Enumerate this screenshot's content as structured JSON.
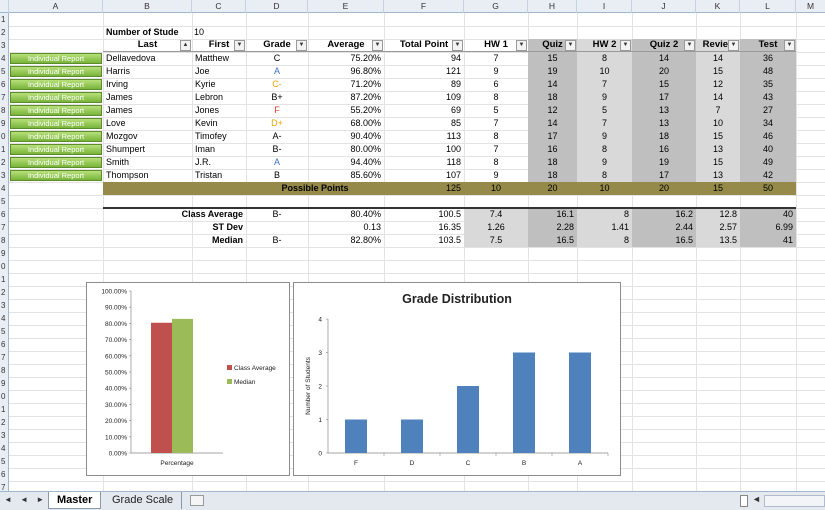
{
  "columns": [
    "A",
    "B",
    "C",
    "D",
    "E",
    "F",
    "G",
    "H",
    "I",
    "J",
    "K",
    "L",
    "M"
  ],
  "rows": [
    "1",
    "2",
    "3",
    "4",
    "5",
    "6",
    "7",
    "8",
    "9",
    "0",
    "1",
    "2",
    "3",
    "4",
    "5",
    "6",
    "7",
    "8",
    "9",
    "0",
    "1",
    "2",
    "3",
    "4",
    "5",
    "6",
    "7",
    "8",
    "9",
    "0",
    "1",
    "2",
    "3",
    "4",
    "5",
    "6",
    "7"
  ],
  "count_label": "Number of Stude",
  "count_value": "10",
  "headers": {
    "last": "Last",
    "first": "First",
    "grade": "Grade",
    "average": "Average",
    "total": "Total Point",
    "hw1": "HW 1",
    "quiz": "Quiz",
    "hw2": "HW 2",
    "quiz2": "Quiz 2",
    "review": "Reviev",
    "test": "Test"
  },
  "button_label": "Individual Report",
  "students": [
    {
      "last": "Dellavedova",
      "first": "Matthew",
      "grade": "C",
      "grade_color": "#000000",
      "average": "75.20%",
      "total": "94",
      "hw1": "7",
      "quiz": "15",
      "hw2": "8",
      "quiz2": "14",
      "review": "14",
      "test": "36"
    },
    {
      "last": "Harris",
      "first": "Joe",
      "grade": "A",
      "grade_color": "#3a6fc4",
      "average": "96.80%",
      "total": "121",
      "hw1": "9",
      "quiz": "19",
      "hw2": "10",
      "quiz2": "20",
      "review": "15",
      "test": "48"
    },
    {
      "last": "Irving",
      "first": "Kyrie",
      "grade": "C-",
      "grade_color": "#e8a600",
      "average": "71.20%",
      "total": "89",
      "hw1": "6",
      "quiz": "14",
      "hw2": "7",
      "quiz2": "15",
      "review": "12",
      "test": "35"
    },
    {
      "last": "James",
      "first": "Lebron",
      "grade": "B+",
      "grade_color": "#000000",
      "average": "87.20%",
      "total": "109",
      "hw1": "8",
      "quiz": "18",
      "hw2": "9",
      "quiz2": "17",
      "review": "14",
      "test": "43"
    },
    {
      "last": "James",
      "first": "Jones",
      "grade": "F",
      "grade_color": "#e03c31",
      "average": "55.20%",
      "total": "69",
      "hw1": "5",
      "quiz": "12",
      "hw2": "5",
      "quiz2": "13",
      "review": "7",
      "test": "27"
    },
    {
      "last": "Love",
      "first": "Kevin",
      "grade": "D+",
      "grade_color": "#e8a600",
      "average": "68.00%",
      "total": "85",
      "hw1": "7",
      "quiz": "14",
      "hw2": "7",
      "quiz2": "13",
      "review": "10",
      "test": "34"
    },
    {
      "last": "Mozgov",
      "first": "Timofey",
      "grade": "A-",
      "grade_color": "#000000",
      "average": "90.40%",
      "total": "113",
      "hw1": "8",
      "quiz": "17",
      "hw2": "9",
      "quiz2": "18",
      "review": "15",
      "test": "46"
    },
    {
      "last": "Shumpert",
      "first": "Iman",
      "grade": "B-",
      "grade_color": "#000000",
      "average": "80.00%",
      "total": "100",
      "hw1": "7",
      "quiz": "16",
      "hw2": "8",
      "quiz2": "16",
      "review": "13",
      "test": "40"
    },
    {
      "last": "Smith",
      "first": "J.R.",
      "grade": "A",
      "grade_color": "#3a6fc4",
      "average": "94.40%",
      "total": "118",
      "hw1": "8",
      "quiz": "18",
      "hw2": "9",
      "quiz2": "19",
      "review": "15",
      "test": "49"
    },
    {
      "last": "Thompson",
      "first": "Tristan",
      "grade": "B",
      "grade_color": "#000000",
      "average": "85.60%",
      "total": "107",
      "hw1": "9",
      "quiz": "18",
      "hw2": "8",
      "quiz2": "17",
      "review": "13",
      "test": "42"
    }
  ],
  "possible": {
    "label": "Possible Points",
    "total": "125",
    "hw1": "10",
    "quiz": "20",
    "hw2": "10",
    "quiz2": "20",
    "review": "15",
    "test": "50"
  },
  "stats": [
    {
      "label": "Class Average",
      "grade": "B-",
      "average": "80.40%",
      "total": "100.5",
      "hw1": "7.4",
      "quiz": "16.1",
      "hw2": "8",
      "quiz2": "16.2",
      "review": "12.8",
      "test": "40"
    },
    {
      "label": "ST Dev",
      "grade": "",
      "average": "0.13",
      "total": "16.35",
      "hw1": "1.26",
      "quiz": "2.28",
      "hw2": "1.41",
      "quiz2": "2.44",
      "review": "2.57",
      "test": "6.99"
    },
    {
      "label": "Median",
      "grade": "B-",
      "average": "82.80%",
      "total": "103.5",
      "hw1": "7.5",
      "quiz": "16.5",
      "hw2": "8",
      "quiz2": "16.5",
      "review": "13.5",
      "test": "41"
    }
  ],
  "chart_data": [
    {
      "type": "bar",
      "title": "",
      "categories": [
        "Percentage"
      ],
      "series": [
        {
          "name": "Class Average",
          "values": [
            80.4
          ],
          "color": "#c0504d"
        },
        {
          "name": "Median",
          "values": [
            82.8
          ],
          "color": "#9bbb59"
        }
      ],
      "yticks": [
        "100.00%",
        "90.00%",
        "80.00%",
        "70.00%",
        "60.00%",
        "50.00%",
        "40.00%",
        "30.00%",
        "20.00%",
        "10.00%",
        "0.00%"
      ],
      "ylim": [
        0,
        100
      ],
      "legend": "right"
    },
    {
      "type": "bar",
      "title": "Grade Distribution",
      "categories": [
        "F",
        "D",
        "C",
        "B",
        "A"
      ],
      "values": [
        1,
        1,
        2,
        3,
        3
      ],
      "ylabel": "Number of Students",
      "yticks": [
        "4",
        "3",
        "2",
        "1",
        "0"
      ],
      "ylim": [
        0,
        4
      ],
      "color": "#4f81bd"
    }
  ],
  "tabs": [
    "Master",
    "Grade Scale"
  ]
}
